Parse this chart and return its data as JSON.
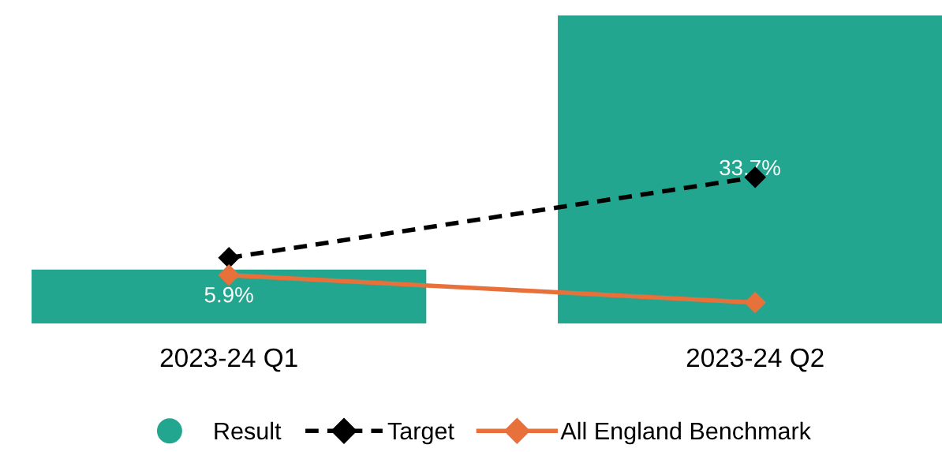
{
  "chart_data": {
    "type": "bar",
    "categories": [
      "2023-24 Q1",
      "2023-24 Q2"
    ],
    "grid": false,
    "legend": "bottom",
    "tick_labels": "x",
    "series": [
      {
        "name": "Result",
        "color": "#23a68f",
        "values": [
          5.9,
          33.7
        ],
        "value_labels": [
          "5.9%",
          "33.7%"
        ]
      },
      {
        "name": "Target",
        "type": "line",
        "color": "#000000",
        "values": [
          7.2,
          16.0
        ],
        "line_style": "dashed",
        "marker": "diamond"
      },
      {
        "name": "All England Benchmark",
        "type": "line",
        "color": "#e8703a",
        "values": [
          5.3,
          2.3
        ],
        "line_style": "solid",
        "marker": "diamond"
      }
    ]
  }
}
